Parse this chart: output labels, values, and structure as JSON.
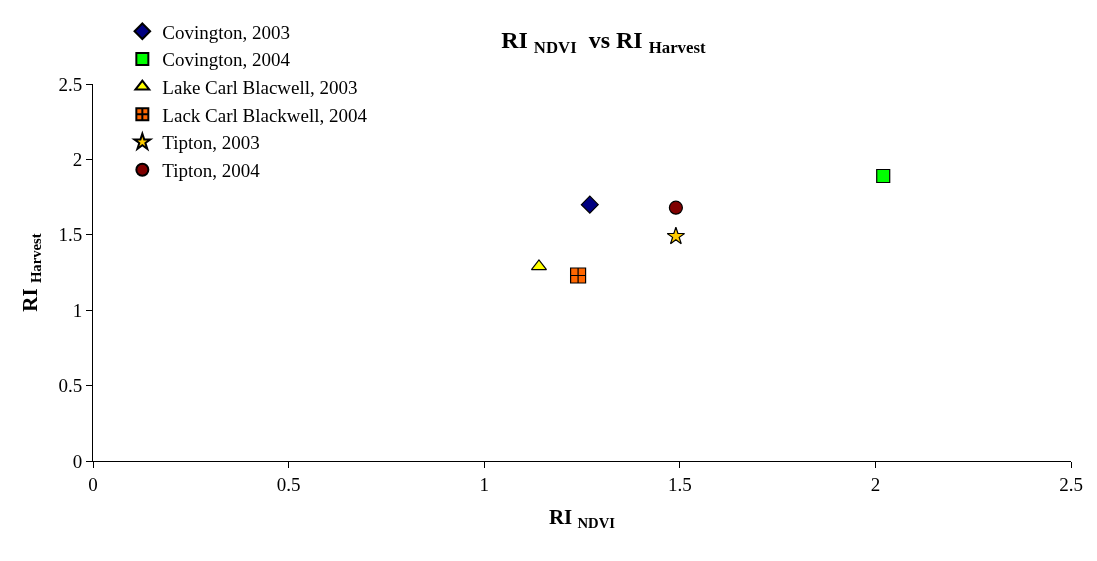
{
  "chart_data": {
    "type": "scatter",
    "title": "RI $_{NDVI}$  vs RI $_{Harvest}$",
    "xlabel": "RI $_{NDVI}$",
    "ylabel": "RI $_{Harvest}$",
    "series": [
      {
        "name": "Covington, 2003",
        "color": "#000080",
        "marker": "diamond",
        "x": [
          1.27
        ],
        "values": [
          1.7
        ]
      },
      {
        "name": "Covington, 2004",
        "color": "#00ff00",
        "marker": "square",
        "x": [
          2.02
        ],
        "values": [
          1.89
        ]
      },
      {
        "name": "Lake Carl Blacwell, 2003",
        "color": "#ffff00",
        "marker": "triangle",
        "x": [
          1.14
        ],
        "values": [
          1.29
        ]
      },
      {
        "name": "Lack Carl Blackwell, 2004",
        "color": "#ff6600",
        "marker": "cross",
        "x": [
          1.24
        ],
        "values": [
          1.23
        ]
      },
      {
        "name": "Tipton, 2003",
        "color": "#ffcc00",
        "marker": "star",
        "x": [
          1.49
        ],
        "values": [
          1.49
        ]
      },
      {
        "name": "Tipton, 2004",
        "color": "#800000",
        "marker": "circle",
        "x": [
          1.49
        ],
        "values": [
          1.68
        ]
      }
    ],
    "xlim": [
      0,
      2.5
    ],
    "xticks": [
      0,
      0.5,
      1,
      1.5,
      2,
      2.5
    ],
    "ylim": [
      0,
      2.5
    ],
    "yticks": [
      0,
      0.5,
      1,
      1.5,
      2,
      2.5
    ],
    "legend": "top left"
  }
}
